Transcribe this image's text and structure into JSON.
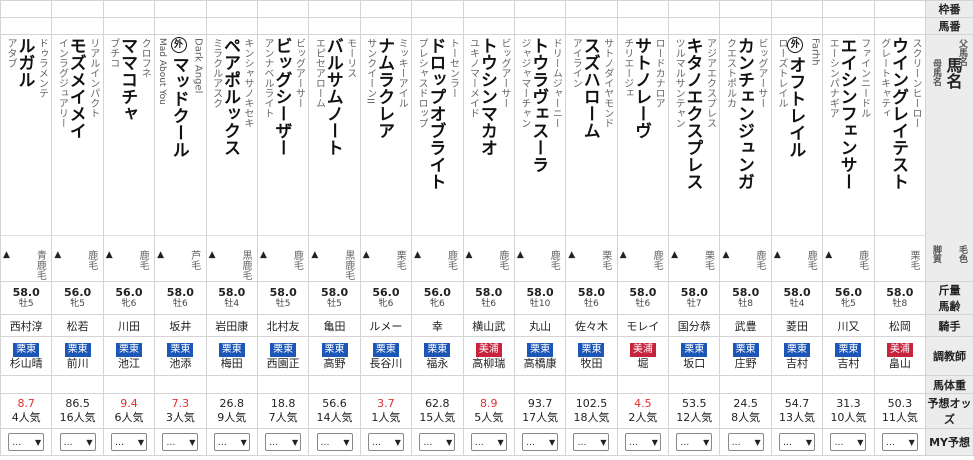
{
  "labels": {
    "waku": "枠番",
    "umaban": "馬番",
    "name": "馬名",
    "sire_label": "父馬名",
    "dam_label": "母馬名",
    "hair_label": "毛色",
    "dirt_label": "脚質",
    "kinryou": "斤量",
    "age": "馬齢",
    "jockey": "騎手",
    "trainer": "調教師",
    "weight": "馬体重",
    "odds": "予想オッズ",
    "my": "MY予想"
  },
  "horses": [
    {
      "name": "ルガル",
      "sire": "ドゥラメンテ",
      "dam": "アタブ",
      "foreign": false,
      "en": "",
      "hair": "青鹿毛",
      "tri": "▲",
      "weight": "58.0",
      "sexage": "牡5",
      "jockey": "西村淳",
      "region": "栗東",
      "trainer": "杉山晴",
      "odds": "8.7",
      "hot": true,
      "pop": "4人気",
      "my": "…"
    },
    {
      "name": "モズメイメイ",
      "sire": "リアルインパクト",
      "dam": "インラグジュアリー",
      "foreign": false,
      "en": "",
      "hair": "鹿毛",
      "tri": "▲",
      "weight": "56.0",
      "sexage": "牝5",
      "jockey": "松若",
      "region": "栗東",
      "trainer": "前川",
      "odds": "86.5",
      "hot": false,
      "pop": "16人気",
      "my": "…"
    },
    {
      "name": "ママコチャ",
      "sire": "クロフネ",
      "dam": "ブチコ",
      "foreign": false,
      "en": "",
      "hair": "鹿毛",
      "tri": "▲",
      "weight": "56.0",
      "sexage": "牝6",
      "jockey": "川田",
      "region": "栗東",
      "trainer": "池江",
      "odds": "9.4",
      "hot": true,
      "pop": "6人気",
      "my": "…"
    },
    {
      "name": "マッドクール",
      "sire": "Dark Angel",
      "dam": "",
      "foreign": true,
      "en": "Mad About You",
      "hair": "芦毛",
      "tri": "▲",
      "weight": "58.0",
      "sexage": "牡6",
      "jockey": "坂井",
      "region": "栗東",
      "trainer": "池添",
      "odds": "7.3",
      "hot": true,
      "pop": "3人気",
      "my": "…"
    },
    {
      "name": "ペアポルックス",
      "sire": "キンシャサノキセキ",
      "dam": "ミラクルアスク",
      "foreign": false,
      "en": "",
      "hair": "黒鹿毛",
      "tri": "▲",
      "weight": "58.0",
      "sexage": "牡4",
      "jockey": "岩田康",
      "region": "栗東",
      "trainer": "梅田",
      "odds": "26.8",
      "hot": false,
      "pop": "9人気",
      "my": "…"
    },
    {
      "name": "ビッグシーザー",
      "sire": "ビッグアーサー",
      "dam": "アンナベルライト",
      "foreign": false,
      "en": "",
      "hair": "鹿毛",
      "tri": "▲",
      "weight": "58.0",
      "sexage": "牡5",
      "jockey": "北村友",
      "region": "栗東",
      "trainer": "西園正",
      "odds": "18.8",
      "hot": false,
      "pop": "7人気",
      "my": "…"
    },
    {
      "name": "バルサムノート",
      "sire": "モーリス",
      "dam": "エピセアローム",
      "foreign": false,
      "en": "",
      "hair": "黒鹿毛",
      "tri": "▲",
      "weight": "58.0",
      "sexage": "牡5",
      "jockey": "亀田",
      "region": "栗東",
      "trainer": "高野",
      "odds": "56.6",
      "hot": false,
      "pop": "14人気",
      "my": "…"
    },
    {
      "name": "ナムラクレア",
      "sire": "ミッキーアイル",
      "dam": "サンクイーンII",
      "foreign": false,
      "en": "",
      "hair": "栗毛",
      "tri": "▲",
      "weight": "56.0",
      "sexage": "牝6",
      "jockey": "ルメー",
      "region": "栗東",
      "trainer": "長谷川",
      "odds": "3.7",
      "hot": true,
      "pop": "1人気",
      "my": "…"
    },
    {
      "name": "ドロップオブライト",
      "sire": "トーセンラー",
      "dam": "プレシャスドロップ",
      "foreign": false,
      "en": "",
      "hair": "鹿毛",
      "tri": "▲",
      "weight": "56.0",
      "sexage": "牝6",
      "jockey": "幸",
      "region": "栗東",
      "trainer": "福永",
      "odds": "62.8",
      "hot": false,
      "pop": "15人気",
      "my": "…"
    },
    {
      "name": "トウシンマカオ",
      "sire": "ビッグアーサー",
      "dam": "ユキノマーメイド",
      "foreign": false,
      "en": "",
      "hair": "鹿毛",
      "tri": "▲",
      "weight": "58.0",
      "sexage": "牡6",
      "jockey": "横山武",
      "region": "美浦",
      "trainer": "高柳瑞",
      "odds": "8.9",
      "hot": true,
      "pop": "5人気",
      "my": "…"
    },
    {
      "name": "トウラヴェスーラ",
      "sire": "ドリームジャーニー",
      "dam": "ジャジャマーチャン",
      "foreign": false,
      "en": "",
      "hair": "鹿毛",
      "tri": "▲",
      "weight": "58.0",
      "sexage": "牡10",
      "jockey": "丸山",
      "region": "栗東",
      "trainer": "高橋康",
      "odds": "93.7",
      "hot": false,
      "pop": "17人気",
      "my": "…"
    },
    {
      "name": "スズハローム",
      "sire": "サトノダイヤモンド",
      "dam": "アイライン",
      "foreign": false,
      "en": "",
      "hair": "栗毛",
      "tri": "▲",
      "weight": "58.0",
      "sexage": "牡6",
      "jockey": "佐々木",
      "region": "栗東",
      "trainer": "牧田",
      "odds": "102.5",
      "hot": false,
      "pop": "18人気",
      "my": "…"
    },
    {
      "name": "サトノレーヴ",
      "sire": "ロードカナロア",
      "dam": "チリエージェ",
      "foreign": false,
      "en": "",
      "hair": "鹿毛",
      "tri": "▲",
      "weight": "58.0",
      "sexage": "牡6",
      "jockey": "モレイ",
      "region": "美浦",
      "trainer": "堀",
      "odds": "4.5",
      "hot": true,
      "pop": "2人気",
      "my": "…"
    },
    {
      "name": "キタノエクスプレス",
      "sire": "アジアエクスプレス",
      "dam": "ツルマルサンテャン",
      "foreign": false,
      "en": "",
      "hair": "栗毛",
      "tri": "▲",
      "weight": "58.0",
      "sexage": "牡7",
      "jockey": "国分恭",
      "region": "栗東",
      "trainer": "坂口",
      "odds": "53.5",
      "hot": false,
      "pop": "12人気",
      "my": "…"
    },
    {
      "name": "カンチェンジュンガ",
      "sire": "ビッグアーサー",
      "dam": "クエストポルカ",
      "foreign": false,
      "en": "",
      "hair": "鹿毛",
      "tri": "▲",
      "weight": "58.0",
      "sexage": "牡8",
      "jockey": "武豊",
      "region": "栗東",
      "trainer": "庄野",
      "odds": "24.5",
      "hot": false,
      "pop": "8人気",
      "my": "…"
    },
    {
      "name": "オフトレイル",
      "sire": "Farhh",
      "dam": "ローズトレイル",
      "foreign": true,
      "en": "",
      "hair": "鹿毛",
      "tri": "▲",
      "weight": "58.0",
      "sexage": "牡4",
      "jockey": "菱田",
      "region": "栗東",
      "trainer": "吉村",
      "odds": "54.7",
      "hot": false,
      "pop": "13人気",
      "my": "…"
    },
    {
      "name": "エイシンフェンサー",
      "sire": "ファインニードル",
      "dam": "エーシンパナギア",
      "foreign": false,
      "en": "",
      "hair": "鹿毛",
      "tri": "▲",
      "weight": "56.0",
      "sexage": "牝5",
      "jockey": "川又",
      "region": "栗東",
      "trainer": "吉村",
      "odds": "31.3",
      "hot": false,
      "pop": "10人気",
      "my": "…"
    },
    {
      "name": "ウイングレイテスト",
      "sire": "スクリーンヒーロー",
      "dam": "グレートキャティ",
      "foreign": false,
      "en": "",
      "hair": "栗毛",
      "tri": "",
      "weight": "58.0",
      "sexage": "牡8",
      "jockey": "松岡",
      "region": "美浦",
      "trainer": "畠山",
      "odds": "50.3",
      "hot": false,
      "pop": "11人気",
      "my": "…"
    }
  ],
  "colors": {
    "east": "#1c57b8",
    "west": "#c8233d",
    "hot": "#e23030"
  },
  "icons": {
    "select": "chevron-down-icon",
    "foreign": "foreign-mark-icon"
  }
}
